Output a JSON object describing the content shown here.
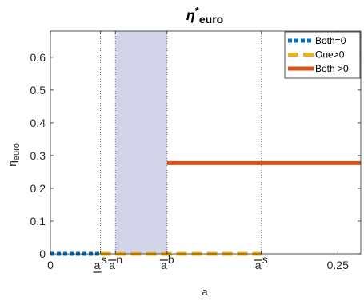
{
  "chart_data": {
    "type": "line",
    "title_main": "η",
    "title_sup": "*",
    "title_sub": "euro",
    "xlabel": "a",
    "ylabel_main": "η",
    "ylabel_sub": "euro",
    "xlim": [
      0,
      0.27
    ],
    "ylim": [
      0,
      0.68
    ],
    "grid": false,
    "legend_position": "top-right",
    "y_ticks": [
      {
        "value": 0,
        "label": "0"
      },
      {
        "value": 0.1,
        "label": "0.1"
      },
      {
        "value": 0.2,
        "label": "0.2"
      },
      {
        "value": 0.3,
        "label": "0.3"
      },
      {
        "value": 0.4,
        "label": "0.4"
      },
      {
        "value": 0.5,
        "label": "0.5"
      },
      {
        "value": 0.6,
        "label": "0.6"
      }
    ],
    "x_ticks": [
      {
        "value": 0,
        "label": "0",
        "sup": "",
        "bar": "",
        "name": "tick-0"
      },
      {
        "value": 0.25,
        "label": "0.25",
        "sup": "",
        "bar": "",
        "name": "tick-0.25"
      }
    ],
    "x_marker_ticks": [
      {
        "value": 0.0435,
        "base": "a",
        "sup": "s",
        "bar": "under",
        "name": "a-underline-s"
      },
      {
        "value": 0.0565,
        "base": "a",
        "sup": "n",
        "bar": "over",
        "name": "a-bar-n"
      },
      {
        "value": 0.1015,
        "base": "a",
        "sup": "b",
        "bar": "over",
        "name": "a-bar-b"
      },
      {
        "value": 0.1835,
        "base": "a",
        "sup": "s",
        "bar": "over",
        "name": "a-bar-s"
      }
    ],
    "shaded_region": {
      "x": [
        0.0565,
        0.1015
      ],
      "color": "#d3d3ea"
    },
    "series": [
      {
        "name": "Both=0",
        "color": "#0072BD",
        "style": "dotted",
        "x": [
          0,
          0.0435
        ],
        "y": [
          0,
          0
        ]
      },
      {
        "name": "One>0",
        "color": "#EDB120",
        "style": "dashed",
        "x": [
          0.0435,
          0.1835
        ],
        "y": [
          0,
          0
        ]
      },
      {
        "name": "Both >0",
        "color": "#D95319",
        "style": "solid",
        "x": [
          0.1015,
          0.27
        ],
        "y": [
          0.277,
          0.277
        ]
      }
    ]
  }
}
